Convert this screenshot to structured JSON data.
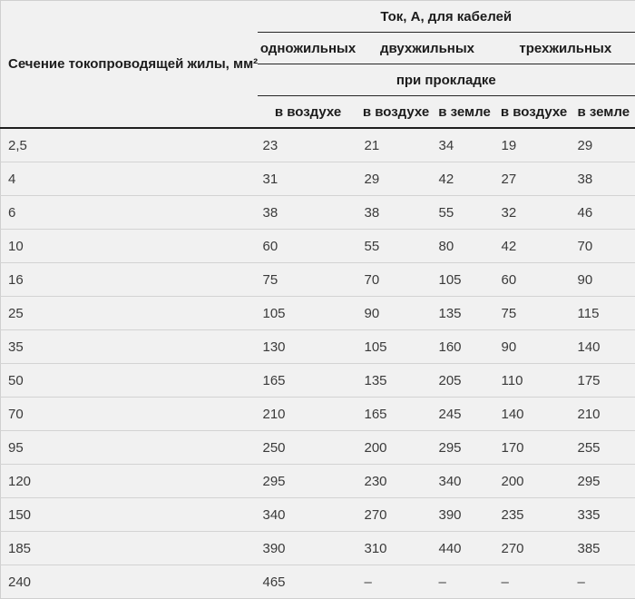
{
  "table": {
    "corner_header": "Сечение токопроводящей жилы, мм²",
    "top_header": "Ток, А, для кабелей",
    "group_headers": [
      "одножильных",
      "двухжильных",
      "трехжильных"
    ],
    "laying_header": "при прокладке",
    "sub_headers": [
      "в воздухе",
      "в воздухе",
      "в земле",
      "в воздухе",
      "в земле"
    ],
    "rows": [
      [
        "2,5",
        "23",
        "21",
        "34",
        "19",
        "29"
      ],
      [
        "4",
        "31",
        "29",
        "42",
        "27",
        "38"
      ],
      [
        "6",
        "38",
        "38",
        "55",
        "32",
        "46"
      ],
      [
        "10",
        "60",
        "55",
        "80",
        "42",
        "70"
      ],
      [
        "16",
        "75",
        "70",
        "105",
        "60",
        "90"
      ],
      [
        "25",
        "105",
        "90",
        "135",
        "75",
        "115"
      ],
      [
        "35",
        "130",
        "105",
        "160",
        "90",
        "140"
      ],
      [
        "50",
        "165",
        "135",
        "205",
        "110",
        "175"
      ],
      [
        "70",
        "210",
        "165",
        "245",
        "140",
        "210"
      ],
      [
        "95",
        "250",
        "200",
        "295",
        "170",
        "255"
      ],
      [
        "120",
        "295",
        "230",
        "340",
        "200",
        "295"
      ],
      [
        "150",
        "340",
        "270",
        "390",
        "235",
        "335"
      ],
      [
        "185",
        "390",
        "310",
        "440",
        "270",
        "385"
      ],
      [
        "240",
        "465",
        "–",
        "–",
        "–",
        "–"
      ]
    ]
  },
  "colors": {
    "background": "#f1f1f1",
    "heavy_rule": "#1f1f1f",
    "light_rule": "#d3d3d3",
    "outer_border": "#cfcfcf",
    "header_text": "#1c1c1c",
    "data_text": "#3a3a3a"
  }
}
